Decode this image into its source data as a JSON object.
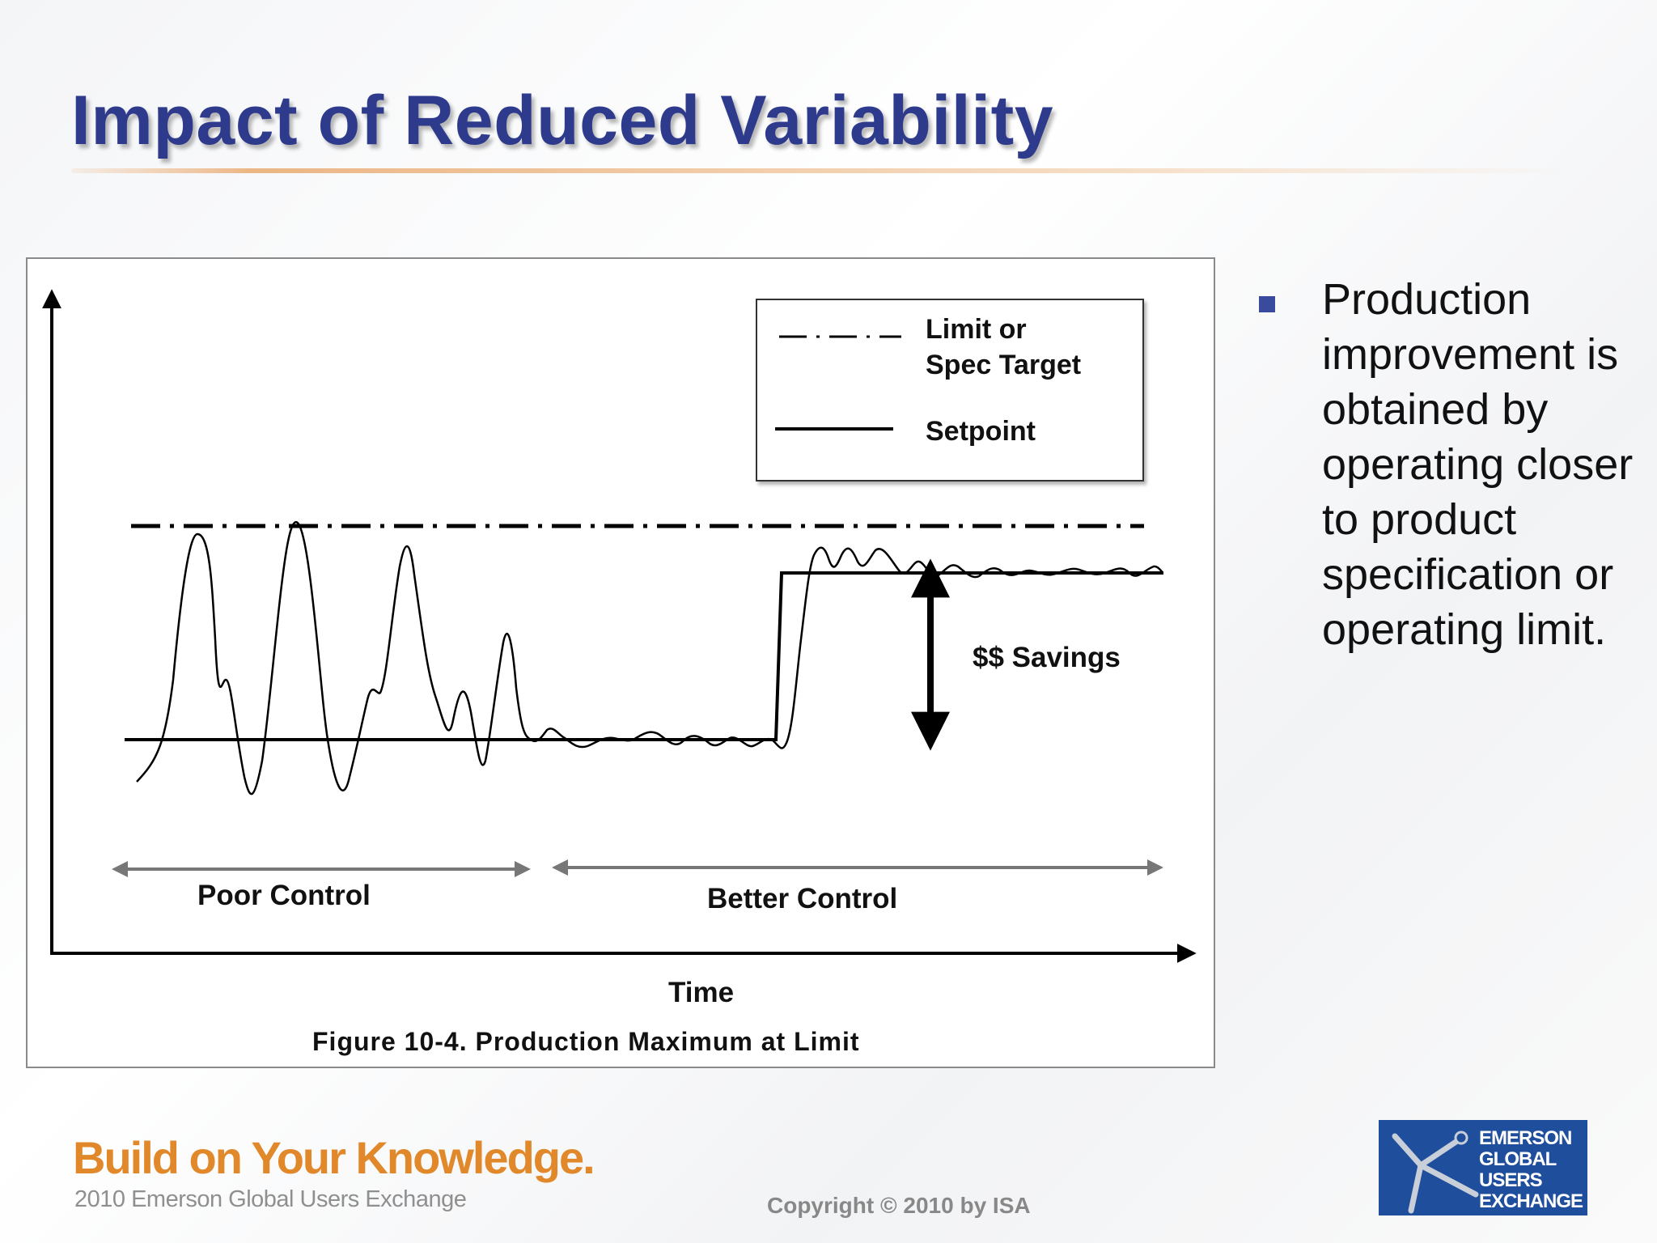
{
  "slide": {
    "title": "Impact of Reduced Variability",
    "bullet": "Production improvement is obtained by operating closer to product specification or operating limit."
  },
  "figure": {
    "legend": {
      "limit_label_line1": "Limit or",
      "limit_label_line2": "Spec Target",
      "setpoint_label": "Setpoint"
    },
    "savings_label": "$$ Savings",
    "poor_control_label": "Poor Control",
    "better_control_label": "Better Control",
    "x_axis_label": "Time",
    "caption": "Figure 10-4. Production Maximum at Limit"
  },
  "footer": {
    "tagline": "Build on Your Knowledge.",
    "subtitle": "2010 Emerson Global Users Exchange",
    "copyright": "Copyright © 2010 by ISA",
    "logo_lines": [
      "EMERSON",
      "GLOBAL",
      "USERS",
      "EXCHANGE"
    ]
  },
  "colors": {
    "title": "#2e3a8c",
    "bullet_marker": "#3a4a9c",
    "tagline": "#e0882a",
    "logo_bg": "#1f4e9c"
  }
}
